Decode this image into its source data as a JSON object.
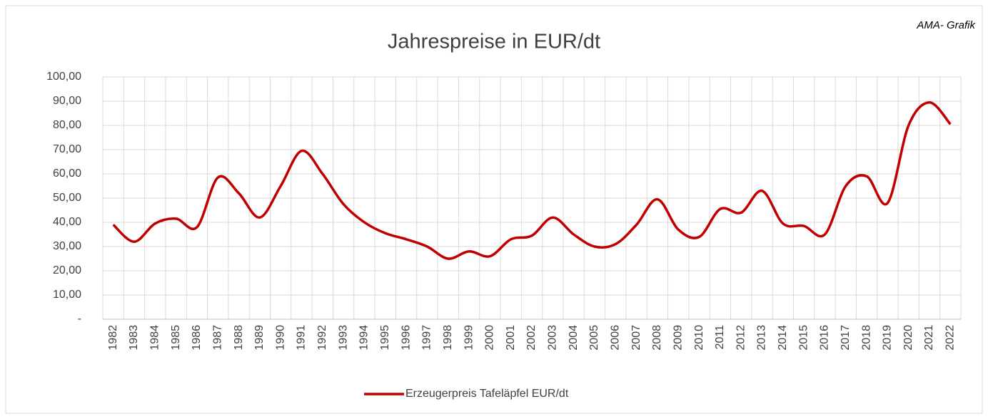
{
  "chart_data": {
    "type": "line",
    "title": "Jahrespreise in EUR/dt",
    "annotation": "AMA- Grafik",
    "categories": [
      "1982",
      "1983",
      "1984",
      "1985",
      "1986",
      "1987",
      "1988",
      "1989",
      "1990",
      "1991",
      "1992",
      "1993",
      "1994",
      "1995",
      "1996",
      "1997",
      "1998",
      "1999",
      "2000",
      "2001",
      "2002",
      "2003",
      "2004",
      "2005",
      "2006",
      "2007",
      "2008",
      "2009",
      "2010",
      "2011",
      "2012",
      "2013",
      "2014",
      "2015",
      "2016",
      "2017",
      "2018",
      "2019",
      "2020",
      "2021",
      "2022"
    ],
    "series": [
      {
        "name": "Erzeugerpreis Tafeläpfel EUR/dt",
        "color": "#c00000",
        "values": [
          39,
          32,
          39.5,
          41.5,
          38,
          58.5,
          52,
          42,
          55,
          69.5,
          60,
          47.5,
          40,
          35.5,
          33,
          30,
          25,
          28,
          26,
          33,
          34.5,
          42,
          35,
          30,
          31,
          39,
          49.5,
          37,
          34,
          45.5,
          44,
          53,
          39.5,
          38.5,
          35,
          55,
          59,
          48,
          80,
          89.5,
          80.5
        ]
      }
    ],
    "ylim": [
      0,
      100
    ],
    "yticks": [
      {
        "value": 0,
        "label": "-"
      },
      {
        "value": 10,
        "label": "10,00"
      },
      {
        "value": 20,
        "label": "20,00"
      },
      {
        "value": 30,
        "label": "30,00"
      },
      {
        "value": 40,
        "label": "40,00"
      },
      {
        "value": 50,
        "label": "50,00"
      },
      {
        "value": 60,
        "label": "60,00"
      },
      {
        "value": 70,
        "label": "70,00"
      },
      {
        "value": 80,
        "label": "80,00"
      },
      {
        "value": 90,
        "label": "90,00"
      },
      {
        "value": 100,
        "label": "100,00"
      }
    ],
    "grid": true,
    "legend": "bottom"
  }
}
